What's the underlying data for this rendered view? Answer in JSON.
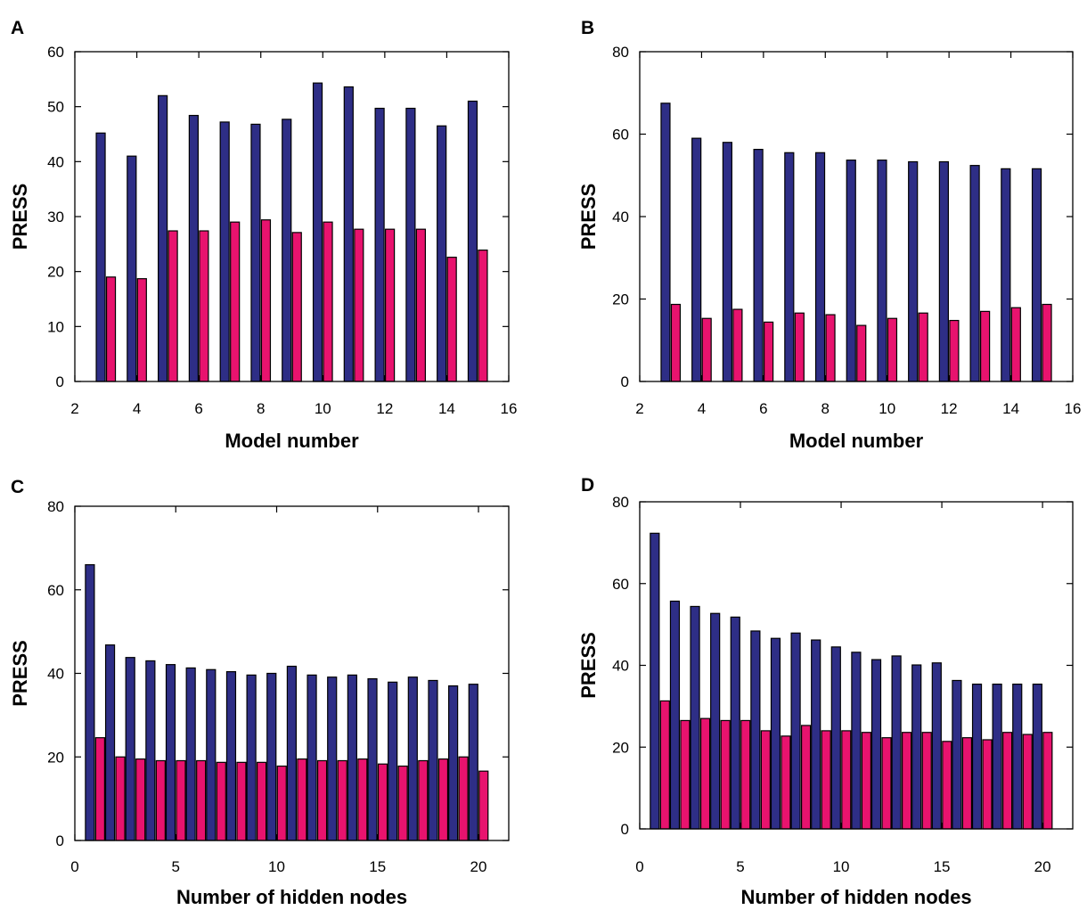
{
  "colors": {
    "series_a": "#2e2e86",
    "series_b": "#e8136e",
    "outline": "#000000"
  },
  "chart_data": [
    {
      "panel": "A",
      "type": "bar",
      "xlabel": "Model number",
      "ylabel": "PRESS",
      "xlim": [
        2,
        16
      ],
      "ylim": [
        0,
        60
      ],
      "xticks": [
        2,
        4,
        6,
        8,
        10,
        12,
        14,
        16
      ],
      "yticks": [
        0,
        10,
        20,
        30,
        40,
        50,
        60
      ],
      "x": [
        3,
        4,
        5,
        6,
        7,
        8,
        9,
        10,
        11,
        12,
        13,
        14,
        15
      ],
      "series": [
        {
          "values": [
            45.2,
            41.0,
            52.0,
            48.4,
            47.2,
            46.8,
            47.7,
            54.3,
            53.6,
            49.7,
            49.7,
            46.5,
            51.0
          ]
        },
        {
          "values": [
            19.0,
            18.7,
            27.4,
            27.4,
            29.0,
            29.4,
            27.1,
            29.0,
            27.7,
            27.7,
            27.7,
            22.6,
            23.9
          ]
        }
      ]
    },
    {
      "panel": "B",
      "type": "bar",
      "xlabel": "Model number",
      "ylabel": "PRESS",
      "xlim": [
        2,
        16
      ],
      "ylim": [
        0,
        80
      ],
      "xticks": [
        2,
        4,
        6,
        8,
        10,
        12,
        14,
        16
      ],
      "yticks": [
        0,
        20,
        40,
        60,
        80
      ],
      "x": [
        3,
        4,
        5,
        6,
        7,
        8,
        9,
        10,
        11,
        12,
        13,
        14,
        15
      ],
      "series": [
        {
          "values": [
            67.5,
            59.0,
            58.0,
            56.3,
            55.5,
            55.5,
            53.7,
            53.7,
            53.3,
            53.3,
            52.4,
            51.6,
            51.6
          ]
        },
        {
          "values": [
            18.7,
            15.3,
            17.5,
            14.4,
            16.6,
            16.2,
            13.6,
            15.3,
            16.6,
            14.8,
            17.0,
            17.9,
            18.7
          ]
        }
      ]
    },
    {
      "panel": "C",
      "type": "bar",
      "xlabel": "Number of hidden nodes",
      "ylabel": "PRESS",
      "xlim": [
        0,
        21.5
      ],
      "ylim": [
        0,
        80
      ],
      "xticks": [
        0,
        5,
        10,
        15,
        20
      ],
      "yticks": [
        0,
        20,
        40,
        60,
        80
      ],
      "x": [
        1,
        2,
        3,
        4,
        5,
        6,
        7,
        8,
        9,
        10,
        11,
        12,
        13,
        14,
        15,
        16,
        17,
        18,
        19,
        20
      ],
      "series": [
        {
          "values": [
            66.0,
            46.8,
            43.8,
            43.0,
            42.1,
            41.3,
            40.9,
            40.4,
            39.6,
            40.0,
            41.7,
            39.6,
            39.1,
            39.6,
            38.7,
            37.9,
            39.1,
            38.3,
            37.0,
            37.4
          ]
        },
        {
          "values": [
            24.6,
            20.0,
            19.5,
            19.1,
            19.1,
            19.1,
            18.7,
            18.7,
            18.7,
            17.8,
            19.5,
            19.1,
            19.1,
            19.5,
            18.3,
            17.8,
            19.1,
            19.5,
            20.0,
            16.6
          ]
        }
      ]
    },
    {
      "panel": "D",
      "type": "bar",
      "xlabel": "Number of hidden nodes",
      "ylabel": "PRESS",
      "xlim": [
        0,
        21.5
      ],
      "ylim": [
        0,
        80
      ],
      "xticks": [
        0,
        5,
        10,
        15,
        20
      ],
      "yticks": [
        0,
        20,
        40,
        60,
        80
      ],
      "x": [
        1,
        2,
        3,
        4,
        5,
        6,
        7,
        8,
        9,
        10,
        11,
        12,
        13,
        14,
        15,
        16,
        17,
        18,
        19,
        20
      ],
      "series": [
        {
          "values": [
            72.3,
            55.7,
            54.4,
            52.7,
            51.8,
            48.4,
            46.6,
            47.9,
            46.2,
            44.5,
            43.2,
            41.4,
            42.3,
            40.1,
            40.6,
            36.3,
            35.4,
            35.4,
            35.4,
            35.4
          ]
        },
        {
          "values": [
            31.3,
            26.5,
            27.0,
            26.5,
            26.5,
            24.0,
            22.7,
            25.3,
            24.0,
            24.0,
            23.6,
            22.3,
            23.6,
            23.6,
            21.4,
            22.3,
            21.8,
            23.6,
            23.1,
            23.6
          ]
        }
      ]
    }
  ]
}
